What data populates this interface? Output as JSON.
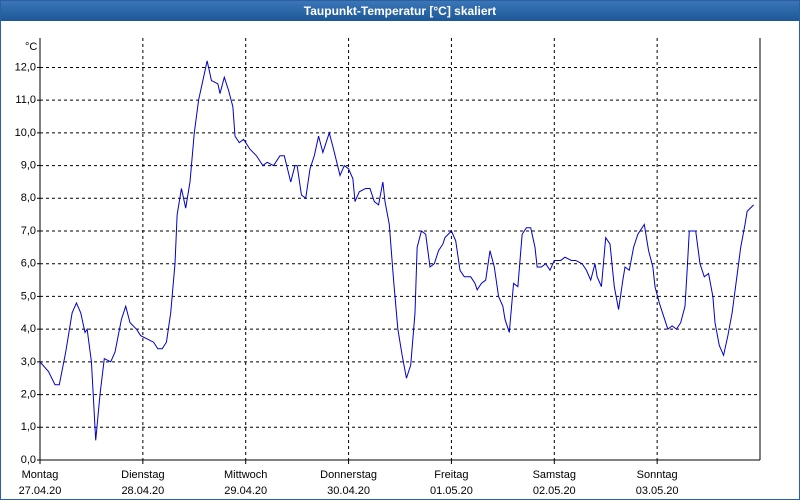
{
  "chart_data": {
    "type": "line",
    "title": "Taupunkt-Temperatur [°C] skaliert",
    "y_label": "°C",
    "color": "#0000c8",
    "grid": true,
    "xlim": [
      0,
      168
    ],
    "ylim": [
      0,
      12.9
    ],
    "xticks": [
      {
        "value": 0,
        "label": "Montag",
        "date": "27.04.20"
      },
      {
        "value": 24,
        "label": "Dienstag",
        "date": "28.04.20"
      },
      {
        "value": 48,
        "label": "Mittwoch",
        "date": "29.04.20"
      },
      {
        "value": 72,
        "label": "Donnerstag",
        "date": "30.04.20"
      },
      {
        "value": 96,
        "label": "Freitag",
        "date": "01.05.20"
      },
      {
        "value": 120,
        "label": "Samstag",
        "date": "02.05.20"
      },
      {
        "value": 144,
        "label": "Sonntag",
        "date": "03.05.20"
      }
    ],
    "yticks": [
      {
        "value": 0,
        "label": "0,0"
      },
      {
        "value": 1,
        "label": "1,0"
      },
      {
        "value": 2,
        "label": "2,0"
      },
      {
        "value": 3,
        "label": "3,0"
      },
      {
        "value": 4,
        "label": "4,0"
      },
      {
        "value": 5,
        "label": "5,0"
      },
      {
        "value": 6,
        "label": "6,0"
      },
      {
        "value": 7,
        "label": "7,0"
      },
      {
        "value": 8,
        "label": "8,0"
      },
      {
        "value": 9,
        "label": "9,0"
      },
      {
        "value": 10,
        "label": "10,0"
      },
      {
        "value": 11,
        "label": "11,0"
      },
      {
        "value": 12,
        "label": "12,0"
      }
    ],
    "x": [
      0,
      2,
      3.5,
      4.5,
      6,
      7.5,
      8.5,
      9.5,
      10.5,
      11,
      12,
      13,
      14,
      15,
      16.5,
      17.5,
      19,
      20,
      21,
      22.5,
      23.5,
      25,
      26.5,
      27.5,
      28.5,
      29.5,
      30.5,
      31.5,
      32,
      33,
      34,
      35,
      36,
      37,
      38.5,
      39,
      40,
      41.5,
      42,
      43,
      44,
      45,
      45.5,
      46.5,
      47.5,
      49,
      50.5,
      52,
      53,
      54.5,
      56,
      57,
      58.5,
      59.5,
      60,
      61,
      62,
      63,
      64,
      65,
      66,
      66.5,
      67.5,
      68.5,
      70,
      71,
      72,
      73,
      73.5,
      74.5,
      76,
      77,
      78,
      79,
      80,
      80.5,
      81.5,
      82.5,
      83.5,
      84.5,
      85.5,
      86.5,
      87.5,
      88,
      89,
      90,
      91,
      92,
      93,
      94,
      94.5,
      96,
      97,
      98,
      99,
      100.5,
      101.5,
      102,
      103,
      104,
      105,
      106,
      107,
      108,
      108.5,
      109.5,
      110.5,
      111.5,
      112.5,
      113.5,
      114.5,
      115.5,
      116,
      117,
      118,
      119,
      120,
      121.5,
      122.5,
      124,
      125,
      126.5,
      127.5,
      128.5,
      129.5,
      130,
      131,
      132,
      133,
      134,
      135,
      136,
      136.5,
      137.5,
      138.5,
      139.5,
      141,
      142,
      143,
      143.5,
      144.5,
      145.5,
      146.5,
      147.5,
      148.5,
      149.5,
      150.5,
      151,
      151.5,
      153,
      154,
      155,
      156,
      157,
      157.5,
      158.5,
      159.5,
      160.5,
      161.5,
      162.5,
      163.5,
      164.5,
      165,
      166.5
    ],
    "values": [
      3.0,
      2.7,
      2.3,
      2.3,
      3.3,
      4.5,
      4.8,
      4.5,
      3.9,
      4.0,
      3.0,
      0.6,
      2.0,
      3.1,
      3.0,
      3.3,
      4.3,
      4.7,
      4.2,
      4.0,
      3.8,
      3.7,
      3.6,
      3.4,
      3.4,
      3.6,
      4.5,
      6.0,
      7.5,
      8.3,
      7.7,
      8.5,
      10.0,
      11.0,
      11.9,
      12.2,
      11.6,
      11.5,
      11.2,
      11.7,
      11.3,
      10.8,
      9.9,
      9.7,
      9.8,
      9.5,
      9.3,
      9.0,
      9.1,
      9.0,
      9.3,
      9.3,
      8.5,
      9.0,
      9.0,
      8.1,
      8.0,
      8.9,
      9.3,
      9.9,
      9.4,
      9.6,
      10.0,
      9.5,
      8.7,
      9.0,
      8.9,
      8.6,
      7.9,
      8.2,
      8.3,
      8.3,
      7.9,
      7.8,
      8.5,
      7.9,
      7.2,
      5.5,
      4.0,
      3.2,
      2.5,
      2.9,
      4.5,
      6.5,
      7.0,
      6.9,
      5.9,
      6.0,
      6.4,
      6.6,
      6.8,
      7.0,
      6.7,
      5.8,
      5.6,
      5.6,
      5.4,
      5.2,
      5.4,
      5.5,
      6.4,
      5.9,
      5.0,
      4.7,
      4.3,
      3.9,
      5.4,
      5.3,
      6.9,
      7.1,
      7.1,
      6.5,
      5.9,
      5.9,
      6.0,
      5.8,
      6.1,
      6.1,
      6.2,
      6.1,
      6.1,
      6.0,
      5.8,
      5.5,
      6.0,
      5.6,
      5.3,
      6.8,
      6.6,
      5.3,
      4.6,
      5.5,
      5.9,
      5.8,
      6.5,
      6.9,
      7.2,
      6.4,
      5.9,
      5.3,
      4.8,
      4.4,
      4.0,
      4.1,
      4.0,
      4.2,
      4.7,
      5.8,
      7.0,
      7.0,
      6.0,
      5.6,
      5.7,
      5.0,
      4.2,
      3.5,
      3.2,
      3.8,
      4.5,
      5.5,
      6.5,
      7.2,
      7.6,
      7.8
    ]
  }
}
